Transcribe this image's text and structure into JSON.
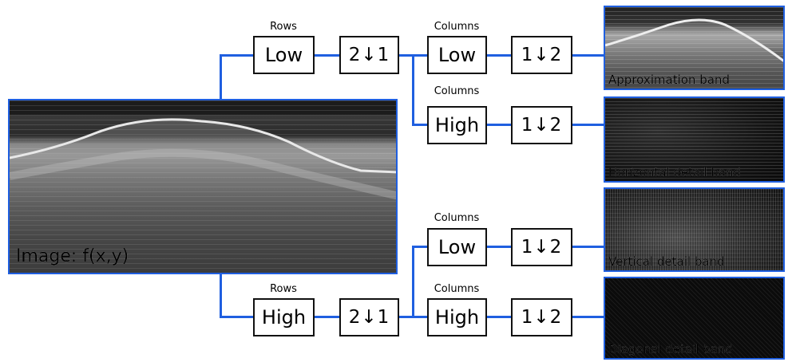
{
  "input_image": {
    "label": "Image: f(x,y)"
  },
  "top_branch": {
    "rows_caption": "Rows",
    "rows_filter": "Low",
    "rows_downsample": "2↓1",
    "low_path": {
      "caption": "Columns",
      "filter": "Low",
      "downsample": "1↓2",
      "output": "Approximation band"
    },
    "high_path": {
      "caption": "Columns",
      "filter": "High",
      "downsample": "1↓2",
      "output": "Horizontal detail band"
    }
  },
  "bottom_branch": {
    "rows_caption": "Rows",
    "rows_filter": "High",
    "rows_downsample": "2↓1",
    "low_path": {
      "caption": "Columns",
      "filter": "Low",
      "downsample": "1↓2",
      "output": "Vertical detail band"
    },
    "high_path": {
      "caption": "Columns",
      "filter": "High",
      "downsample": "1↓2",
      "output": "Diagonal detail band"
    }
  },
  "colors": {
    "connector": "#1f5fe0",
    "box_border": "#111111",
    "background": "#ffffff"
  }
}
